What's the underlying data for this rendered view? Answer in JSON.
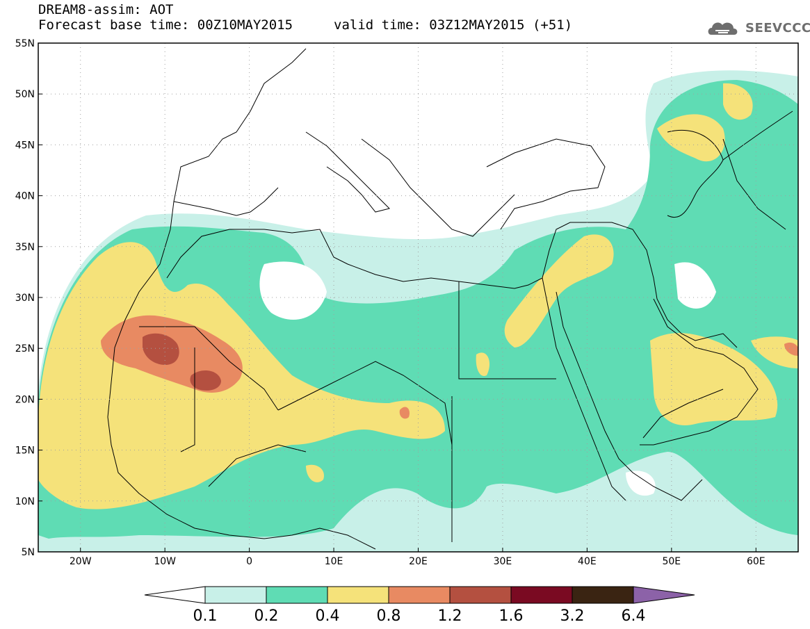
{
  "header": {
    "title": "DREAM8-assim: AOT",
    "base_time": "Forecast base time: 00Z10MAY2015",
    "valid_time": "valid time: 03Z12MAY2015 (+51)",
    "logo_text": "SEEVCCC"
  },
  "map": {
    "lon_range": [
      -25,
      65
    ],
    "lat_range": [
      5,
      55
    ],
    "lat_ticks": [
      "55N",
      "50N",
      "45N",
      "40N",
      "35N",
      "30N",
      "25N",
      "20N",
      "15N",
      "10N",
      "5N"
    ],
    "lon_ticks": [
      "20W",
      "10W",
      "0",
      "10E",
      "20E",
      "30E",
      "40E",
      "50E",
      "60E"
    ]
  },
  "legend": {
    "levels": [
      "0.1",
      "0.2",
      "0.4",
      "0.8",
      "1.2",
      "1.6",
      "3.2",
      "6.4"
    ],
    "colors": [
      "#c8f0e8",
      "#5fdcb4",
      "#f5e27a",
      "#e88a62",
      "#b45040",
      "#7a0a22",
      "#3a2412",
      "#8c62a8"
    ]
  }
}
